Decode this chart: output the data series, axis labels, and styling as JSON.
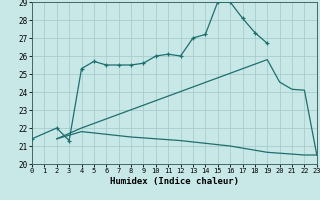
{
  "xlabel": "Humidex (Indice chaleur)",
  "xlim": [
    0,
    23
  ],
  "ylim": [
    20,
    29
  ],
  "xticks": [
    0,
    1,
    2,
    3,
    4,
    5,
    6,
    7,
    8,
    9,
    10,
    11,
    12,
    13,
    14,
    15,
    16,
    17,
    18,
    19,
    20,
    21,
    22,
    23
  ],
  "yticks": [
    20,
    21,
    22,
    23,
    24,
    25,
    26,
    27,
    28,
    29
  ],
  "bg_color": "#c8e8e8",
  "grid_color": "#a8cccc",
  "line_color": "#1e6e6e",
  "line1_x": [
    0,
    2,
    3,
    4,
    5,
    6,
    7,
    8,
    9,
    10,
    11,
    12,
    13,
    14,
    15,
    16,
    17,
    18,
    19
  ],
  "line1_y": [
    21.4,
    22.0,
    21.3,
    25.3,
    25.7,
    25.5,
    25.5,
    25.5,
    25.6,
    26.0,
    26.1,
    26.0,
    27.0,
    27.2,
    29.0,
    29.0,
    28.1,
    27.3,
    26.7
  ],
  "line2_x": [
    2,
    4,
    19,
    20,
    21,
    22,
    23
  ],
  "line2_y": [
    21.4,
    22.0,
    25.8,
    24.55,
    24.15,
    24.1,
    20.5
  ],
  "line3_x": [
    2,
    4,
    8,
    12,
    16,
    19,
    20,
    21,
    22,
    23
  ],
  "line3_y": [
    21.4,
    21.8,
    21.5,
    21.3,
    21.0,
    20.65,
    20.6,
    20.55,
    20.5,
    20.5
  ]
}
